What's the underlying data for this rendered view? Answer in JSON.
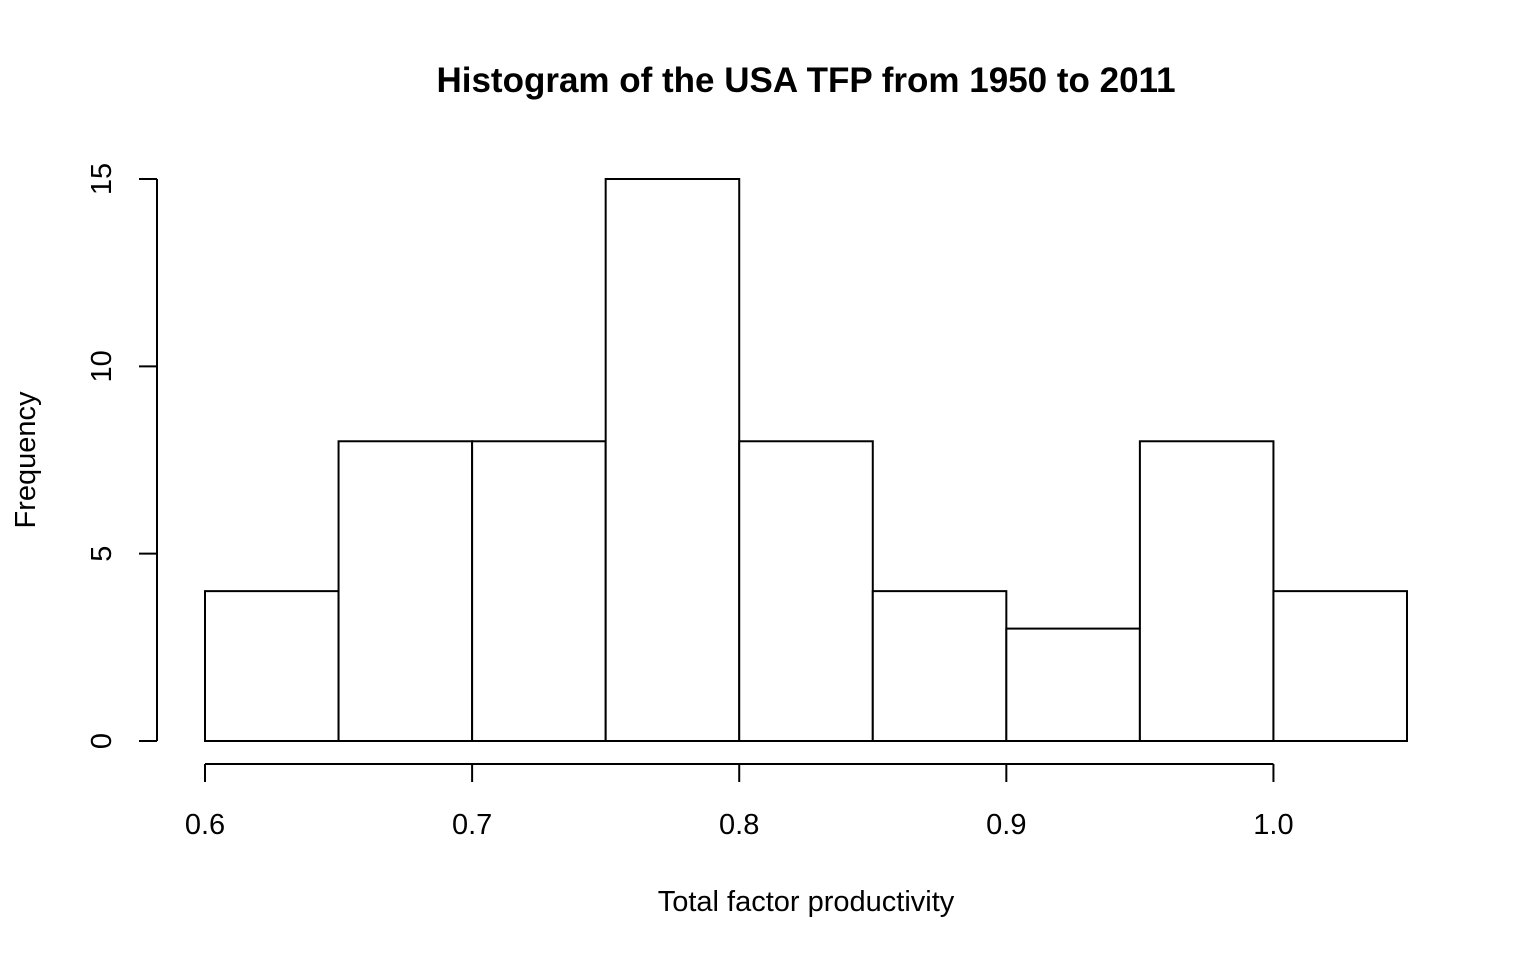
{
  "chart_data": {
    "type": "histogram",
    "title": "Histogram of the USA TFP from 1950 to 2011",
    "xlabel": "Total factor productivity",
    "ylabel": "Frequency",
    "bin_edges": [
      0.6,
      0.65,
      0.7,
      0.75,
      0.8,
      0.85,
      0.9,
      0.95,
      1.0,
      1.05
    ],
    "values": [
      4,
      8,
      8,
      15,
      8,
      4,
      3,
      8,
      4
    ],
    "xlim": [
      0.6,
      1.05
    ],
    "ylim": [
      0,
      15
    ],
    "x_ticks": [
      0.6,
      0.7,
      0.8,
      0.9,
      1.0
    ],
    "x_tick_labels": [
      "0.6",
      "0.7",
      "0.8",
      "0.9",
      "1.0"
    ],
    "y_ticks": [
      0,
      5,
      10,
      15
    ],
    "y_tick_labels": [
      "0",
      "5",
      "10",
      "15"
    ],
    "grid": false,
    "bar_fill": "#ffffff",
    "bar_stroke": "#000000"
  }
}
